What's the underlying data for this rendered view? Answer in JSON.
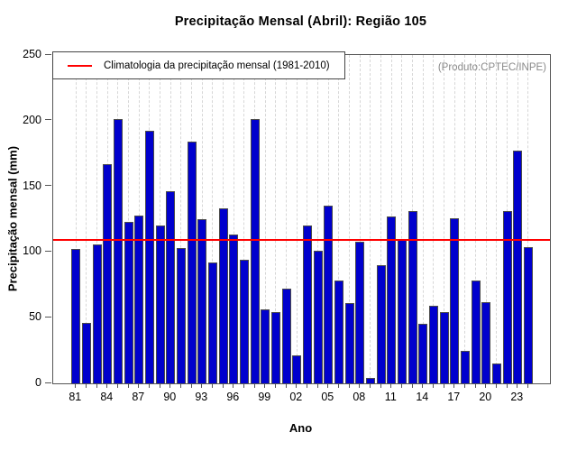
{
  "header": {
    "title": "Precipitação Mensal (Abril): Região 105"
  },
  "legend": {
    "label": "Climatologia da precipitação mensal (1981-2010)"
  },
  "annotation": {
    "text": "(Produto:CPTEC/INPE)"
  },
  "colors": {
    "bar_fill": "#0000cd",
    "bar_border": "#4a4a4a",
    "climatology_line": "#ff0000",
    "grid_line": "#d7d7d7",
    "axis_box": "#555555",
    "annotation_text": "#8a8a8a",
    "text": "#000000"
  },
  "chart_data": {
    "type": "bar",
    "title": "Precipitação Mensal (Abril): Região 105",
    "xlabel": "Ano",
    "ylabel": "Precipitação mensal (mm)",
    "ylim": [
      0,
      250
    ],
    "yticks": [
      0,
      50,
      100,
      150,
      200,
      250
    ],
    "xtick_label_step": 3,
    "grid": "vertical-dashed",
    "legend_position": "top-left",
    "legend_entries": [
      "Climatologia da precipitação mensal (1981-2010)"
    ],
    "years": [
      1981,
      1982,
      1983,
      1984,
      1985,
      1986,
      1987,
      1988,
      1989,
      1990,
      1991,
      1992,
      1993,
      1994,
      1995,
      1996,
      1997,
      1998,
      1999,
      2000,
      2001,
      2002,
      2003,
      2004,
      2005,
      2006,
      2007,
      2008,
      2009,
      2010,
      2011,
      2012,
      2013,
      2014,
      2015,
      2016,
      2017,
      2018,
      2019,
      2020,
      2021,
      2022,
      2023,
      2024
    ],
    "values": [
      102,
      46,
      106,
      167,
      201,
      123,
      128,
      192,
      120,
      146,
      103,
      184,
      125,
      92,
      133,
      113,
      94,
      201,
      56,
      54,
      72,
      21,
      120,
      101,
      135,
      78,
      61,
      108,
      4,
      90,
      127,
      110,
      131,
      45,
      59,
      54,
      126,
      25,
      78,
      62,
      15,
      131,
      177,
      104
    ],
    "climatology_value": 110
  }
}
